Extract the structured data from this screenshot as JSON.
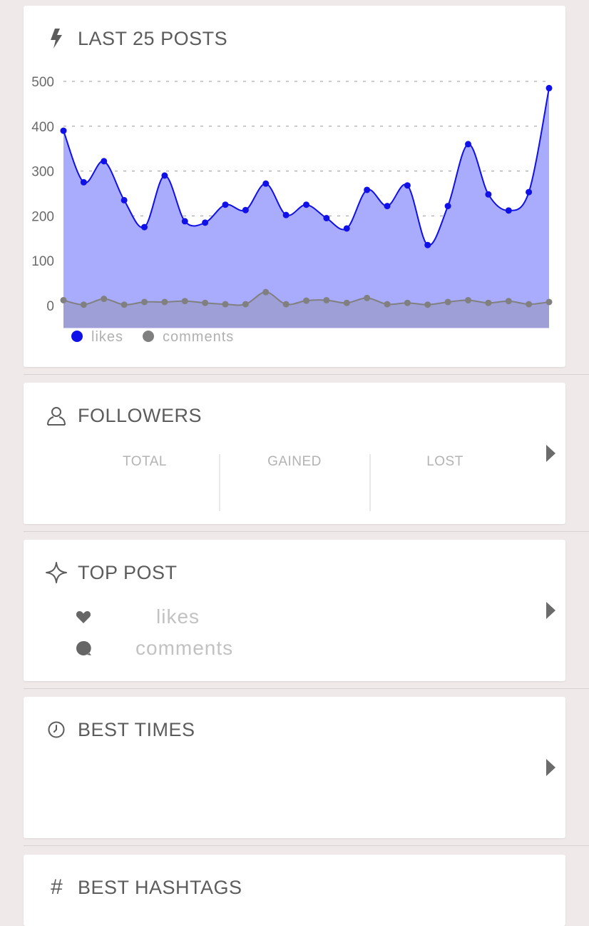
{
  "last_posts": {
    "title": "LAST 25 POSTS",
    "icon": "lightning-icon",
    "legend": {
      "likes": "likes",
      "comments": "comments"
    },
    "colors": {
      "likes": "#1010e8",
      "likes_fill": "#a9abfc",
      "comments": "#808080",
      "comments_fill": "#9d9fd6"
    }
  },
  "chart_data": {
    "type": "area",
    "title": "LAST 25 POSTS",
    "x": [
      1,
      2,
      3,
      4,
      5,
      6,
      7,
      8,
      9,
      10,
      11,
      12,
      13,
      14,
      15,
      16,
      17,
      18,
      19,
      20,
      21,
      22,
      23,
      24,
      25
    ],
    "series": [
      {
        "name": "likes",
        "values": [
          390,
          275,
          322,
          235,
          175,
          290,
          188,
          185,
          225,
          213,
          272,
          202,
          225,
          195,
          172,
          258,
          222,
          268,
          135,
          222,
          360,
          248,
          212,
          253,
          485
        ]
      },
      {
        "name": "comments",
        "values": [
          12,
          2,
          15,
          2,
          8,
          8,
          10,
          6,
          3,
          3,
          30,
          3,
          11,
          12,
          6,
          17,
          3,
          6,
          2,
          8,
          12,
          6,
          10,
          3,
          8
        ]
      }
    ],
    "y_ticks": [
      0,
      100,
      200,
      300,
      400,
      500
    ],
    "ylim": [
      -50,
      500
    ],
    "grid": true,
    "legend_position": "bottom-left"
  },
  "followers": {
    "title": "FOLLOWERS",
    "icon": "user-icon",
    "columns": [
      "TOTAL",
      "GAINED",
      "LOST"
    ]
  },
  "top_post": {
    "title": "TOP POST",
    "icon": "sparkle-icon",
    "likes_label": "likes",
    "comments_label": "comments"
  },
  "best_times": {
    "title": "BEST TIMES",
    "icon": "clock-icon"
  },
  "best_hashtags": {
    "title": "BEST HASHTAGS",
    "icon": "hashtag-icon",
    "symbol": "#"
  }
}
